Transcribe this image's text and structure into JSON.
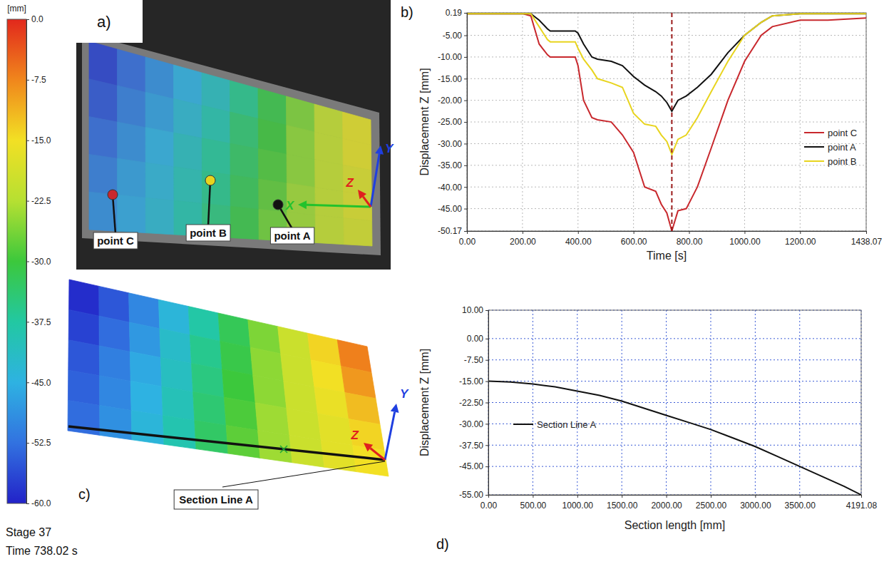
{
  "colorbar": {
    "title": "[mm]",
    "range": [
      0,
      -60
    ],
    "ticks": [
      {
        "value": 0,
        "label": "0.0"
      },
      -7.5,
      {
        "value": -15,
        "label": "-15.0"
      },
      -22.5,
      {
        "value": -30,
        "label": "-30.0"
      },
      -37.5,
      {
        "value": -45,
        "label": "-45.0"
      },
      -52.5,
      {
        "value": -60,
        "label": "-60.0"
      }
    ],
    "colors": [
      "#e2281c",
      "#f0861c",
      "#f2e024",
      "#b6e032",
      "#3cc83c",
      "#22c8a2",
      "#2eb2e2",
      "#3272e0",
      "#2222c8"
    ]
  },
  "chart_data": [
    {
      "type": "heatmap",
      "panel": "a)",
      "cells": [
        [
          -57,
          -53,
          -49,
          -45,
          -41,
          -36,
          -31,
          -26,
          -21,
          -17
        ],
        [
          -55,
          -51,
          -47,
          -43,
          -39,
          -34,
          -30,
          -25,
          -21,
          -17
        ],
        [
          -53,
          -49,
          -45,
          -41,
          -37,
          -33,
          -29,
          -25,
          -21,
          -18
        ],
        [
          -51,
          -47,
          -44,
          -40,
          -36,
          -32,
          -28,
          -24,
          -21,
          -18
        ],
        [
          -49,
          -46,
          -43,
          -39,
          -35,
          -31,
          -27,
          -24,
          -21,
          -19
        ]
      ],
      "points": [
        {
          "name": "point C",
          "color": "#c8282d"
        },
        {
          "name": "point B",
          "color": "#e8d41e"
        },
        {
          "name": "point A",
          "color": "#111111"
        }
      ],
      "axis_names": [
        "X",
        "Y",
        "Z"
      ]
    },
    {
      "type": "line",
      "panel": "b)",
      "xlabel": "Time [s]",
      "ylabel": "Displacement Z [mm]",
      "x": [
        0,
        200,
        230,
        260,
        290,
        300,
        390,
        400,
        420,
        450,
        470,
        520,
        560,
        600,
        640,
        680,
        700,
        720,
        738.02,
        760,
        790,
        830,
        880,
        940,
        1000,
        1060,
        1100,
        1200,
        1300,
        1438.07
      ],
      "series": [
        {
          "name": "point C",
          "color": "#c8282d",
          "values": [
            0,
            0,
            -0.5,
            -7,
            -9.5,
            -10,
            -10,
            -12,
            -20,
            -24,
            -24.5,
            -25,
            -28,
            -32,
            -40,
            -41,
            -44,
            -46,
            -50.17,
            -45.5,
            -45,
            -40,
            -31,
            -20,
            -11,
            -5,
            -3,
            -1.5,
            -1.5,
            -1
          ]
        },
        {
          "name": "point A",
          "color": "#111111",
          "values": [
            0,
            0,
            0,
            -1.5,
            -3.5,
            -4,
            -4,
            -4.5,
            -7,
            -10,
            -10.5,
            -11,
            -12,
            -14.5,
            -16.5,
            -18,
            -19,
            -20.5,
            -22.5,
            -20,
            -19,
            -17,
            -14,
            -9,
            -5,
            -2,
            -0.5,
            0,
            0,
            0
          ]
        },
        {
          "name": "point B",
          "color": "#e8d41e",
          "values": [
            0,
            0,
            0,
            -3,
            -6,
            -6.5,
            -6.5,
            -8,
            -10.5,
            -13,
            -15,
            -16,
            -17,
            -23,
            -25.5,
            -26,
            -28,
            -29.5,
            -32.5,
            -29,
            -28,
            -24,
            -18,
            -11,
            -5,
            -2,
            -0.5,
            0,
            0,
            0
          ]
        }
      ],
      "xlim": [
        0,
        1438.07
      ],
      "ylim": [
        -50.17,
        0.19
      ],
      "xticks": [
        {
          "value": 0,
          "label": "0.00"
        },
        {
          "value": 200,
          "label": "200.00"
        },
        {
          "value": 400,
          "label": "400.00"
        },
        {
          "value": 600,
          "label": "600.00"
        },
        {
          "value": 800,
          "label": "800.00"
        },
        {
          "value": 1000,
          "label": "1000.00"
        },
        {
          "value": 1200,
          "label": "1200.00"
        },
        1438.07
      ],
      "yticks": [
        0.19,
        {
          "value": -5,
          "label": "-5.00"
        },
        {
          "value": -10,
          "label": "-10.00"
        },
        {
          "value": -15,
          "label": "-15.00"
        },
        {
          "value": -20,
          "label": "-20.00"
        },
        {
          "value": -25,
          "label": "-25.00"
        },
        {
          "value": -30,
          "label": "-30.00"
        },
        {
          "value": -35,
          "label": "-35.00"
        },
        {
          "value": -40,
          "label": "-40.00"
        },
        {
          "value": -45,
          "label": "-45.00"
        },
        -50.17
      ],
      "grid": true,
      "legend": "right",
      "vline": 738.02
    },
    {
      "type": "heatmap",
      "panel": "c)",
      "cells": [
        [
          -59,
          -55,
          -50,
          -44,
          -38,
          -32,
          -26,
          -20,
          -14,
          -7
        ],
        [
          -57,
          -53,
          -48,
          -42,
          -36,
          -31,
          -25,
          -20,
          -15,
          -9
        ],
        [
          -55,
          -51,
          -46,
          -41,
          -35,
          -30,
          -25,
          -20,
          -16,
          -12
        ],
        [
          -54,
          -50,
          -45,
          -40,
          -34,
          -29,
          -24,
          -20,
          -17,
          -14
        ],
        [
          -53,
          -49,
          -44,
          -39,
          -33,
          -28,
          -24,
          -20,
          -17,
          -15
        ]
      ],
      "annotation": "Section Line A",
      "axis_names": [
        "Y",
        "Z"
      ]
    },
    {
      "type": "line",
      "panel": "d)",
      "xlabel": "Section length [mm]",
      "ylabel": "Displacement Z [mm]",
      "x": [
        0,
        250,
        500,
        750,
        1000,
        1250,
        1500,
        1750,
        2000,
        2250,
        2500,
        2750,
        3000,
        3250,
        3500,
        3750,
        4000,
        4191.08
      ],
      "series": [
        {
          "name": "Section Line A",
          "color": "#111111",
          "values": [
            -15,
            -15.3,
            -16,
            -17,
            -18.5,
            -20,
            -22,
            -24.5,
            -27,
            -29.5,
            -32,
            -35,
            -38,
            -41.5,
            -45,
            -48.5,
            -52,
            -55
          ]
        }
      ],
      "xlim": [
        0,
        4191.08
      ],
      "ylim": [
        -55,
        10
      ],
      "xticks": [
        {
          "value": 0,
          "label": "0.00"
        },
        {
          "value": 500,
          "label": "500.00"
        },
        {
          "value": 1000,
          "label": "1000.00"
        },
        {
          "value": 1500,
          "label": "1500.00"
        },
        {
          "value": 2000,
          "label": "2000.00"
        },
        {
          "value": 2500,
          "label": "2500.00"
        },
        {
          "value": 3000,
          "label": "3000.00"
        },
        {
          "value": 3500,
          "label": "3500.00"
        },
        4191.08
      ],
      "yticks": [
        {
          "value": 10,
          "label": "10.00"
        },
        {
          "value": 0,
          "label": "0.00"
        },
        {
          "value": -7.5,
          "label": "-7.50"
        },
        {
          "value": -15,
          "label": "-15.00"
        },
        {
          "value": -22.5,
          "label": "-22.50"
        },
        {
          "value": -30,
          "label": "-30.00"
        },
        {
          "value": -37.5,
          "label": "-37.50"
        },
        {
          "value": -45,
          "label": "-45.00"
        },
        {
          "value": -55,
          "label": "-55.00"
        }
      ],
      "grid": true,
      "legend": "left"
    }
  ],
  "caption": [
    "Stage 37",
    "Time 738.02 s"
  ]
}
